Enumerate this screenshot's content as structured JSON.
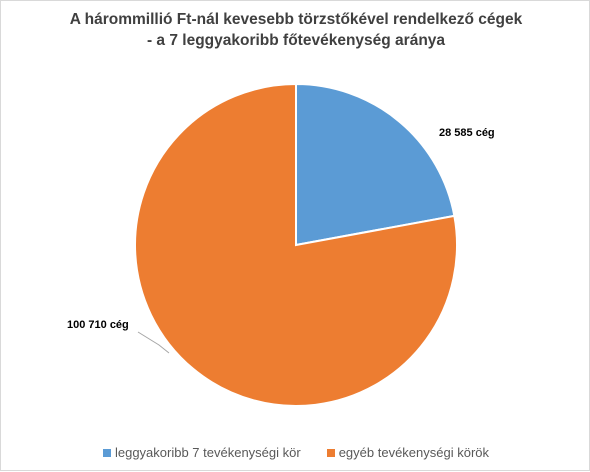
{
  "chart_data": {
    "type": "pie",
    "title_lines": [
      "A hárommillió Ft-nál kevesebb törzstőkével rendelkező cégek",
      "- a 7 leggyakoribb főtevékenység aránya"
    ],
    "categories": [
      "leggyakoribb 7 tevékenységi kör",
      "egyéb tevékenységi körök"
    ],
    "values": [
      28585,
      100710
    ],
    "data_labels": [
      "28 585 cég",
      "100 710 cég"
    ],
    "colors": [
      "#5b9bd5",
      "#ed7d31"
    ],
    "legend_position": "bottom",
    "start_angle": "12 o'clock",
    "direction": "clockwise"
  }
}
